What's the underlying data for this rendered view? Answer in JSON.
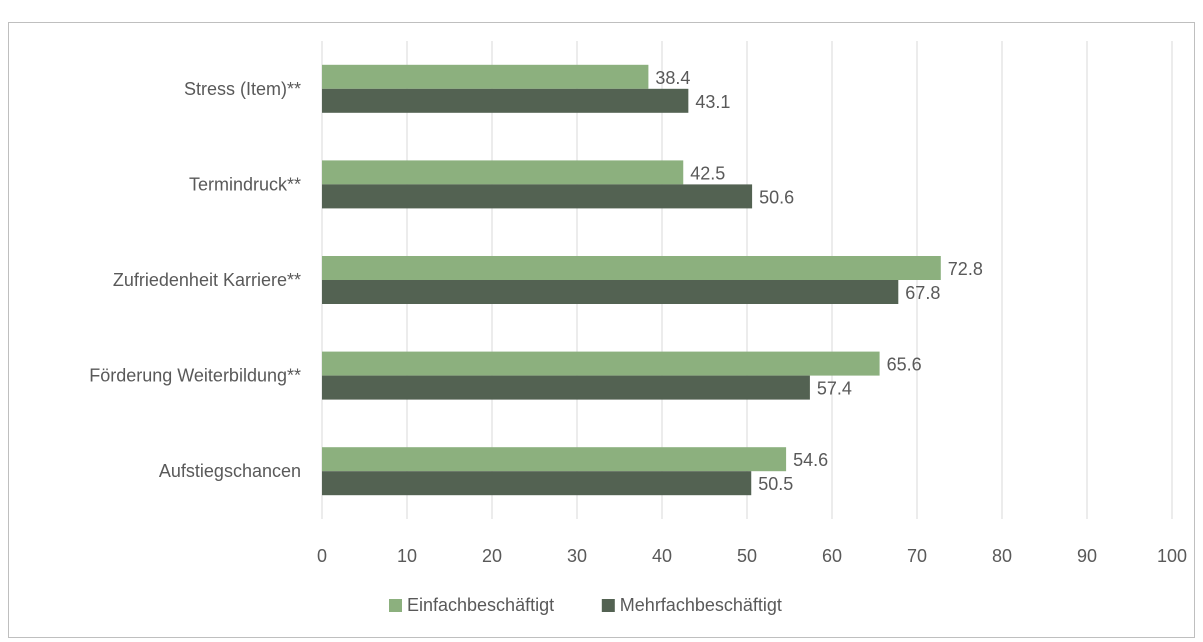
{
  "chart_data": {
    "type": "bar",
    "orientation": "horizontal",
    "title": "",
    "xlabel": "",
    "ylabel": "",
    "categories": [
      "Stress (Item)**",
      "Termindruck**",
      "Zufriedenheit Karriere**",
      "Förderung Weiterbildung**",
      "Aufstiegschancen"
    ],
    "series": [
      {
        "name": "Einfachbeschäftigt",
        "values": [
          38.4,
          42.5,
          72.8,
          65.6,
          54.6
        ],
        "color": "#8cb07e"
      },
      {
        "name": "Mehrfachbeschäftigt",
        "values": [
          43.1,
          50.6,
          67.8,
          57.4,
          50.5
        ],
        "color": "#536252"
      }
    ],
    "xlim": [
      0,
      100
    ],
    "xticks": [
      0,
      10,
      20,
      30,
      40,
      50,
      60,
      70,
      80,
      90,
      100
    ],
    "grid": "vertical",
    "legend": "bottom"
  },
  "colors": {
    "gridline": "#d9d9d9",
    "text": "#595959",
    "border": "#bfbfbf"
  }
}
